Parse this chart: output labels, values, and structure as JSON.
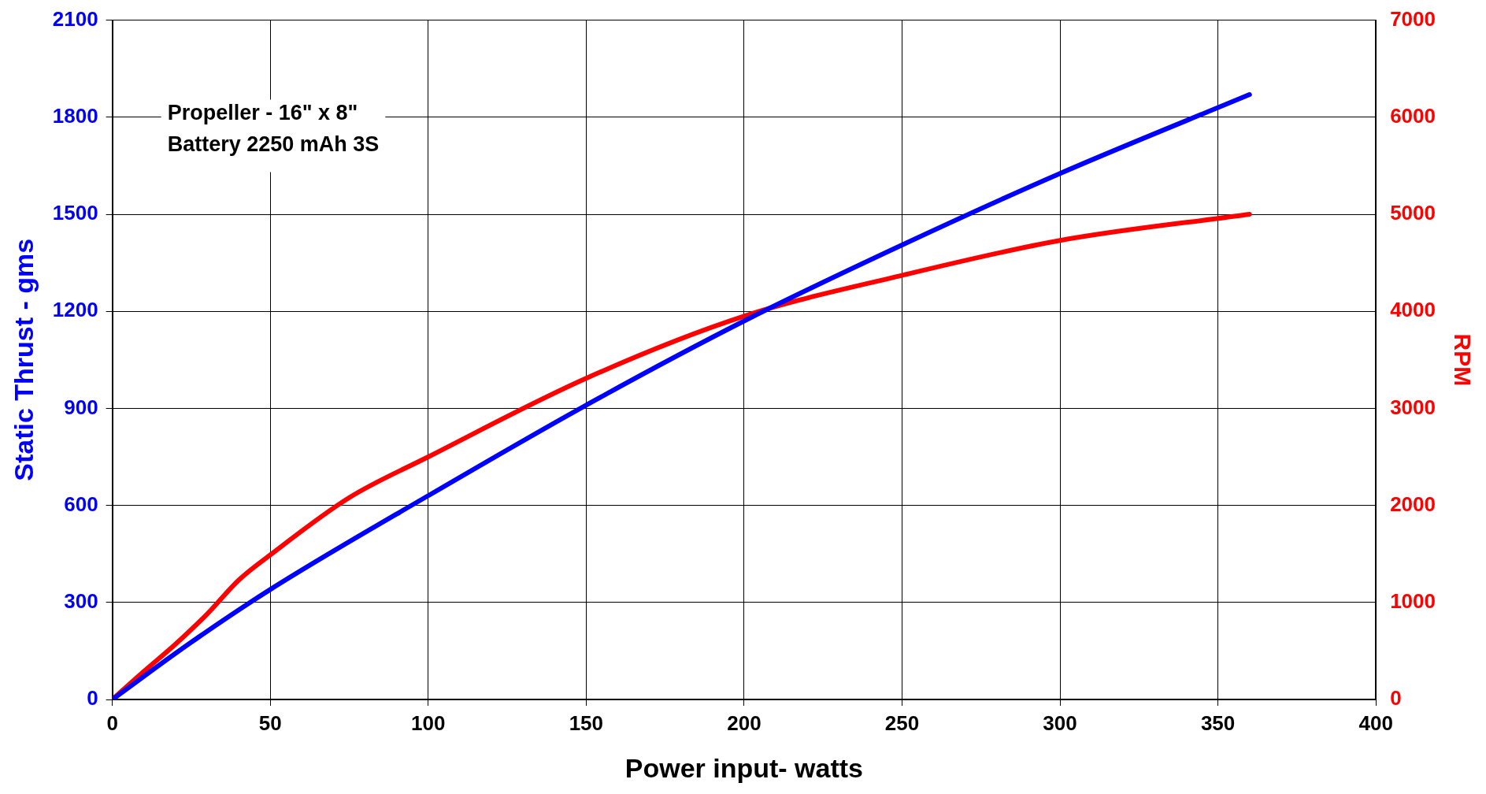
{
  "chart_data": {
    "type": "line",
    "xlabel": "Power input- watts",
    "ylabel": "Static Thrust - gms",
    "y2label": "RPM",
    "annotations": [
      "Propeller - 16\" x 8\"",
      "Battery 2250 mAh 3S"
    ],
    "xlim": [
      0,
      400
    ],
    "xticks": [
      0,
      50,
      100,
      150,
      200,
      250,
      300,
      350,
      400
    ],
    "ylim": [
      0,
      2100
    ],
    "yticks": [
      0,
      300,
      600,
      900,
      1200,
      1500,
      1800,
      2100
    ],
    "y2lim": [
      0,
      7000
    ],
    "y2ticks": [
      0,
      1000,
      2000,
      3000,
      4000,
      5000,
      6000,
      7000
    ],
    "grid": true,
    "legend": false,
    "marker": "none",
    "line_style": "solid",
    "series": [
      {
        "color": "#0000ff",
        "x": [
          0,
          25,
          50,
          100,
          150,
          200,
          250,
          300,
          360
        ],
        "values": [
          0,
          177,
          340,
          630,
          910,
          1170,
          1405,
          1626,
          1870
        ]
      },
      {
        "color": "#ff0000",
        "axis": "y2",
        "x": [
          0,
          10,
          20,
          30,
          40,
          50,
          75,
          100,
          150,
          200,
          250,
          300,
          360
        ],
        "values": [
          0,
          290,
          570,
          880,
          1230,
          1490,
          2080,
          2500,
          3310,
          3950,
          4370,
          4730,
          5000
        ]
      }
    ]
  }
}
